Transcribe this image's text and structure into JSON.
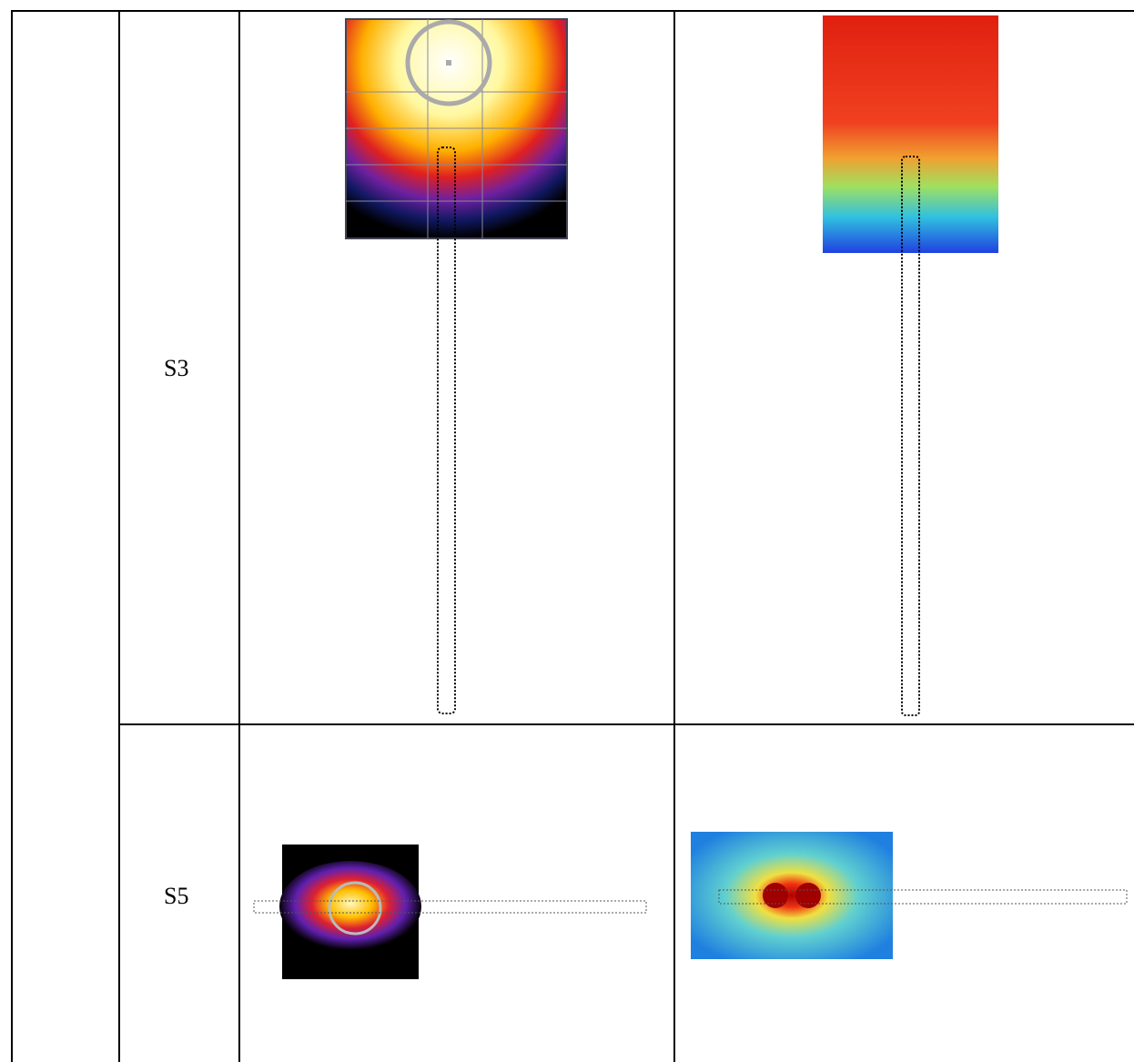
{
  "table": {
    "rows": [
      {
        "label": "S3"
      },
      {
        "label": "S5"
      }
    ]
  }
}
